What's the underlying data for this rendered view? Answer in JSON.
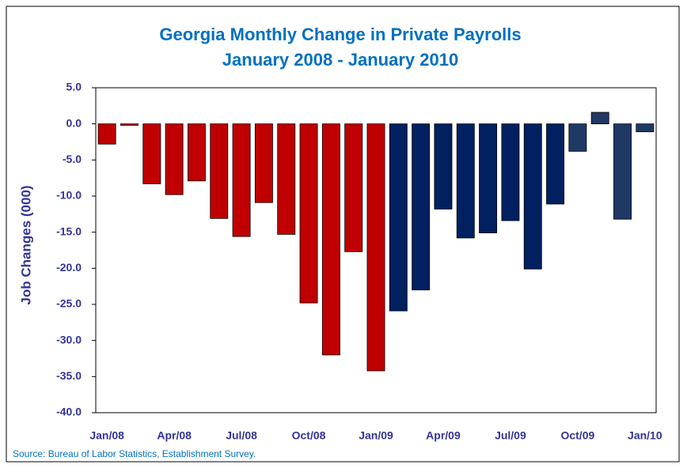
{
  "chart_data": {
    "type": "bar",
    "title": [
      "Georgia Monthly Change in Private Payrolls",
      "January 2008 - January 2010"
    ],
    "y_label": "Job Changes (000)",
    "source": "Source: Bureau of Labor Statistics, Establishment Survey.",
    "categories": [
      "Jan/08",
      null,
      null,
      "Apr/08",
      null,
      null,
      "Jul/08",
      null,
      null,
      "Oct/08",
      null,
      null,
      "Jan/09",
      null,
      null,
      "Apr/09",
      null,
      null,
      "Jul/09",
      null,
      null,
      "Oct/09",
      null,
      null,
      "Jan/10"
    ],
    "values": [
      -2.8,
      -0.2,
      -8.3,
      -9.8,
      -7.9,
      -13.1,
      -15.6,
      -10.9,
      -15.3,
      -24.8,
      -32.0,
      -17.7,
      -34.2,
      -25.9,
      -23.0,
      -11.8,
      -15.8,
      -15.1,
      -13.4,
      -20.1,
      -11.1,
      -3.8,
      1.6,
      -13.2,
      -1.1
    ],
    "colors": [
      "#c00000",
      "#c00000",
      "#c00000",
      "#c00000",
      "#c00000",
      "#c00000",
      "#c00000",
      "#c00000",
      "#c00000",
      "#c00000",
      "#c00000",
      "#c00000",
      "#c00000",
      "#002060",
      "#002060",
      "#002060",
      "#002060",
      "#002060",
      "#002060",
      "#002060",
      "#002060",
      "#1f3864",
      "#1f3864",
      "#1f3864",
      "#1f3864"
    ],
    "ylim": [
      -40,
      5
    ],
    "yticks": [
      {
        "value": -40,
        "label": "-40.0"
      },
      {
        "value": -35,
        "label": "-35.0"
      },
      {
        "value": -30,
        "label": "-30.0"
      },
      {
        "value": -25,
        "label": "-25.0"
      },
      {
        "value": -20,
        "label": "-20.0"
      },
      {
        "value": -15,
        "label": "-15.0"
      },
      {
        "value": -10,
        "label": "-10.0"
      },
      {
        "value": -5,
        "label": "-5.0"
      },
      {
        "value": 0,
        "label": "0.0"
      },
      {
        "value": 5,
        "label": "5.0"
      }
    ]
  }
}
